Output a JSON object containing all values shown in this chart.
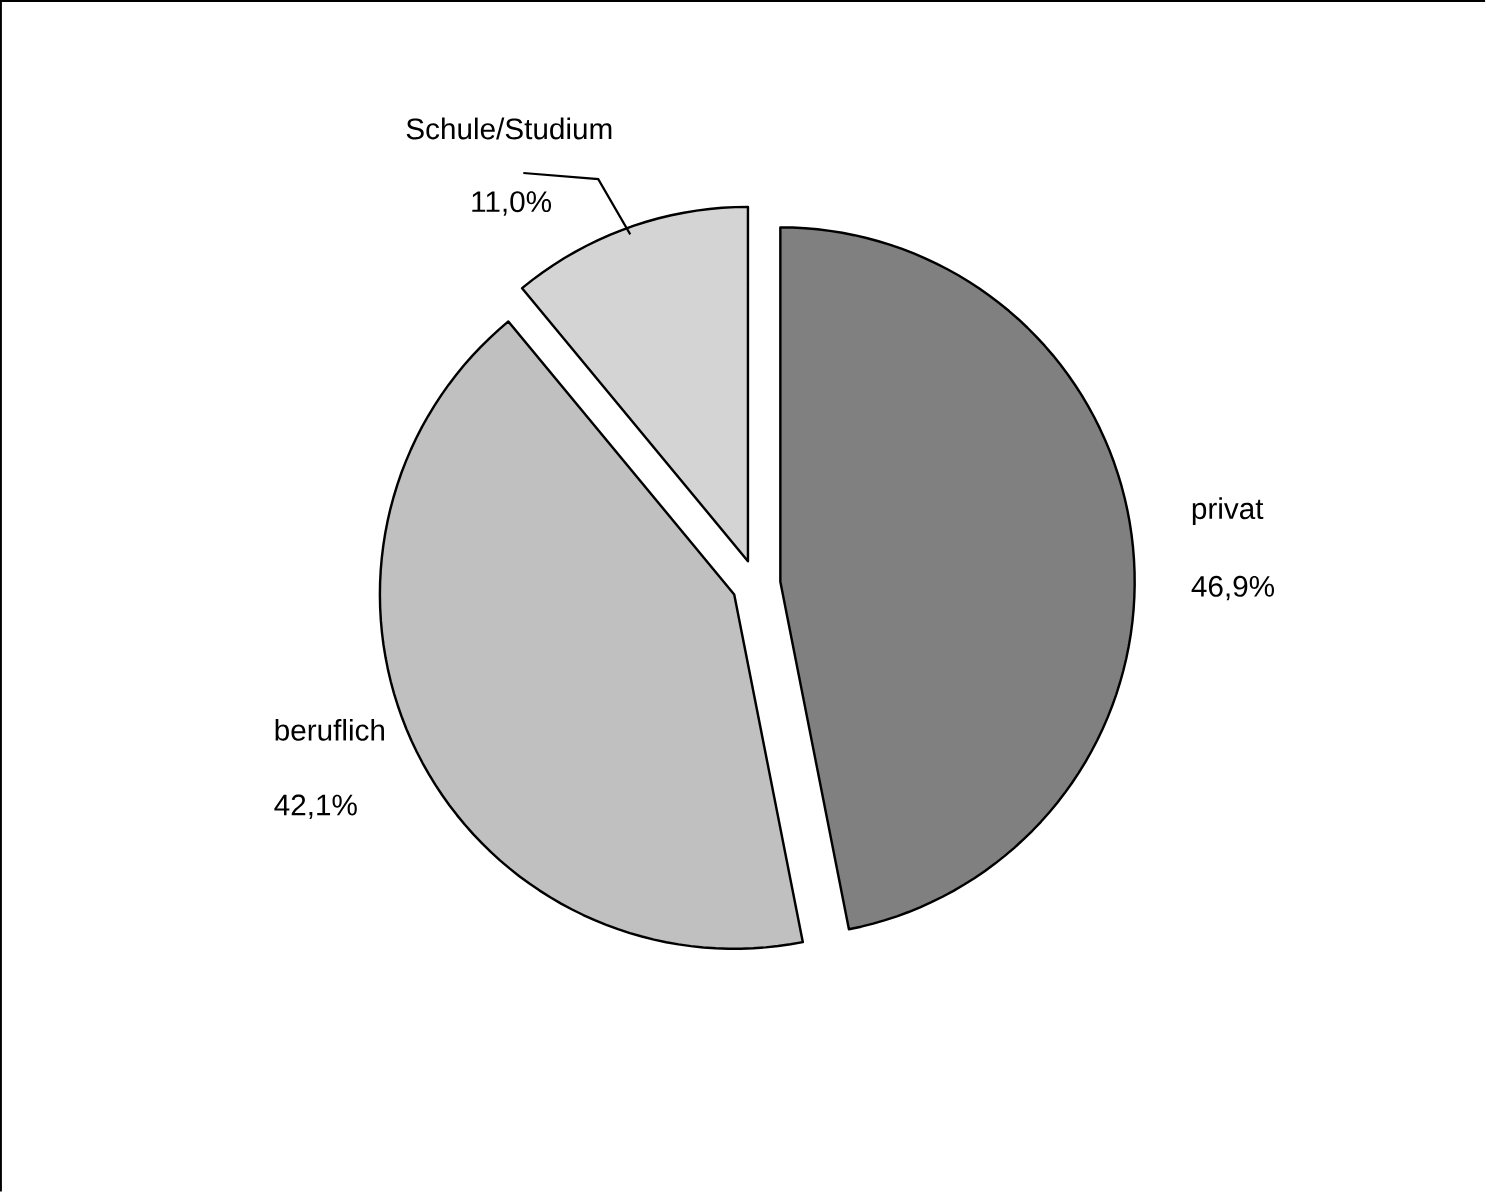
{
  "chart_data": {
    "type": "pie",
    "categories": [
      "privat",
      "beruflich",
      "Schule/Studium"
    ],
    "values": [
      46.9,
      42.1,
      11.0
    ],
    "colors": [
      "#808080",
      "#c0c0c0",
      "#d4d4d4"
    ],
    "value_labels": [
      "46,9%",
      "42,1%",
      "11,0%"
    ]
  }
}
